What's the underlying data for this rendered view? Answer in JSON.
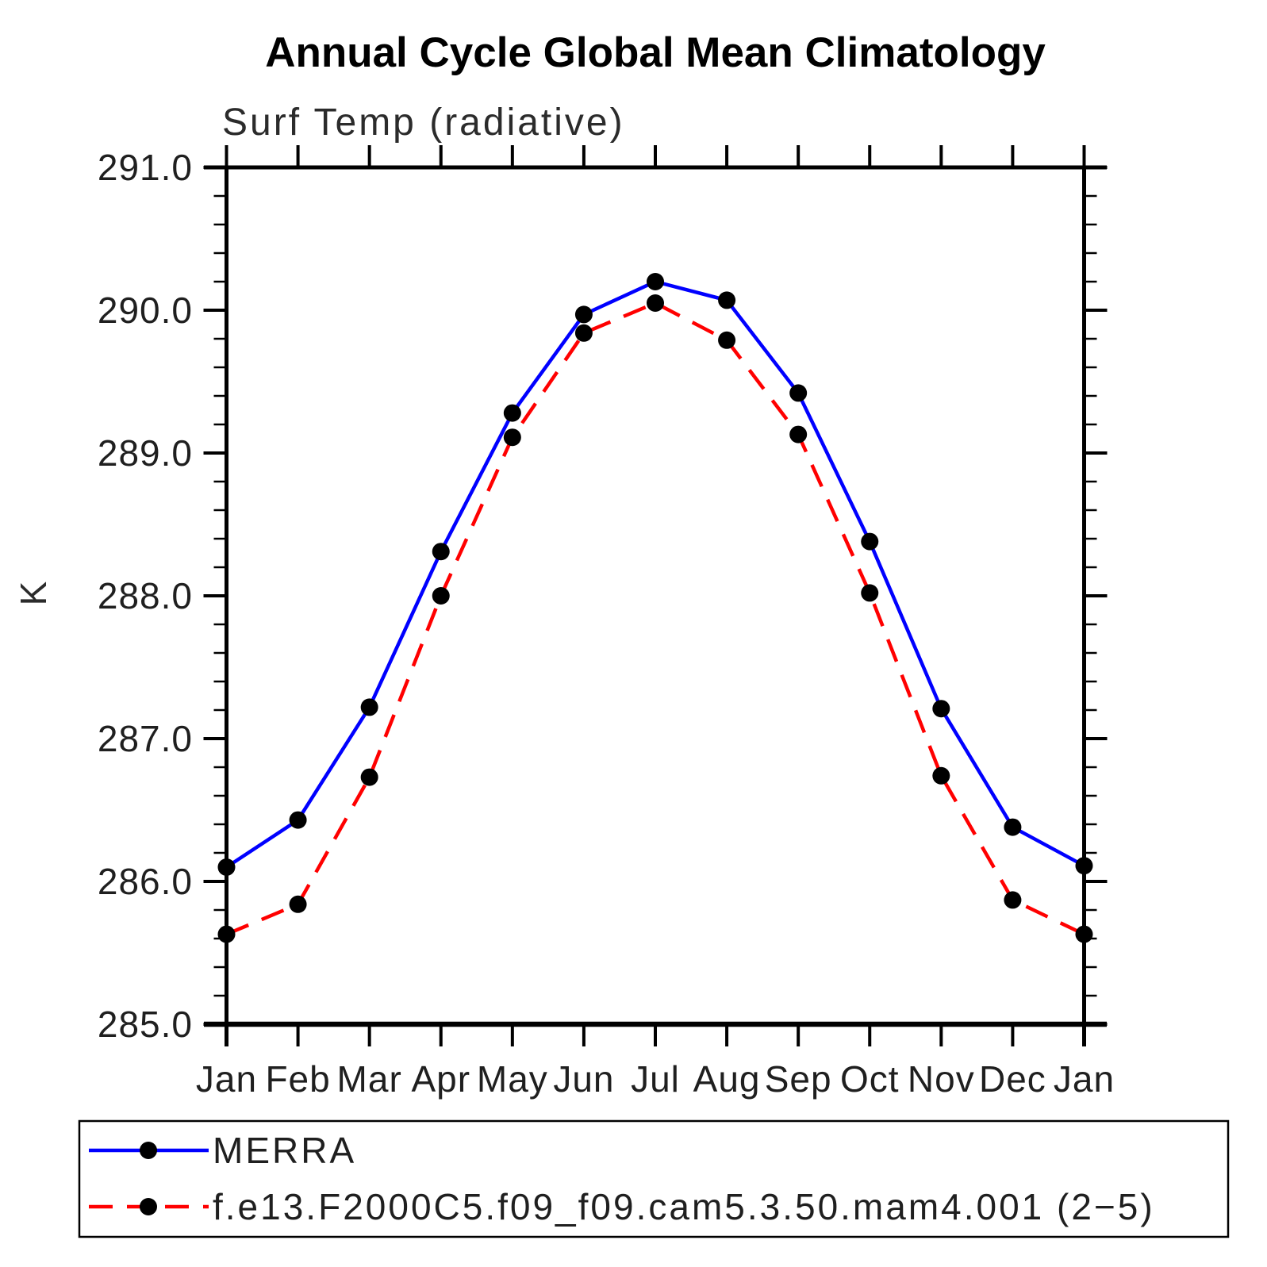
{
  "page": {
    "background": "#ffffff"
  },
  "title": "Annual Cycle Global Mean Climatology",
  "subtitle": "Surf Temp (radiative)",
  "chart_data": {
    "type": "line",
    "title": "Annual Cycle Global Mean Climatology",
    "subtitle": "Surf Temp (radiative)",
    "xlabel": "",
    "ylabel": "K",
    "categories": [
      "Jan",
      "Feb",
      "Mar",
      "Apr",
      "May",
      "Jun",
      "Jul",
      "Aug",
      "Sep",
      "Oct",
      "Nov",
      "Dec",
      "Jan"
    ],
    "series": [
      {
        "name": "MERRA",
        "line_style": "solid",
        "color": "#0000ff",
        "marker": "filled-circle",
        "marker_color": "#000000",
        "values": [
          286.1,
          286.43,
          287.22,
          288.31,
          289.28,
          289.97,
          290.2,
          290.07,
          289.42,
          288.38,
          287.21,
          286.38,
          286.11
        ]
      },
      {
        "name": "f.e13.F2000C5.f09_f09.cam5.3.50.mam4.001 (2−5)",
        "line_style": "dashed",
        "color": "#ff0000",
        "marker": "filled-circle",
        "marker_color": "#000000",
        "values": [
          285.63,
          285.84,
          286.73,
          288.0,
          289.11,
          289.84,
          290.05,
          289.79,
          289.13,
          288.02,
          286.74,
          285.87,
          285.63
        ]
      }
    ],
    "ylim": [
      285.0,
      291.0
    ],
    "ytick_values": [
      285,
      286,
      287,
      288,
      289,
      290,
      291
    ],
    "ytick_labels": [
      "285.0",
      "286.0",
      "287.0",
      "288.0",
      "289.0",
      "290.0",
      "291.0"
    ],
    "yminor_step": 0.2,
    "grid": false,
    "legend_position": "bottom-left-box",
    "axis_color": "#000000"
  }
}
